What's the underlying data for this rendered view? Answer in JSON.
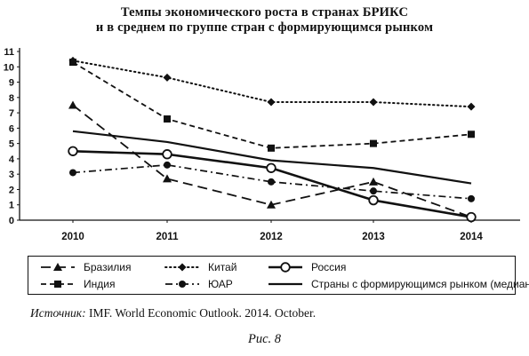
{
  "chart_data": {
    "type": "line",
    "title_line1": "Темпы экономического роста в странах БРИКС",
    "title_line2": "и в среднем по группе стран с формирующимся рынком",
    "xlabel": "",
    "ylabel": "",
    "x": [
      "2010",
      "2011",
      "2012",
      "2013",
      "2014"
    ],
    "ylim": [
      0,
      11
    ],
    "yticks": [
      "0",
      "1",
      "2",
      "3",
      "4",
      "5",
      "6",
      "7",
      "8",
      "9",
      "10",
      "11"
    ],
    "grid": false,
    "legend_placement": "bottom",
    "series": [
      {
        "name": "Бразилия",
        "key": "brazil",
        "values": [
          7.5,
          2.7,
          1.0,
          2.5,
          0.2
        ],
        "dash": "long-dash",
        "marker": "triangle"
      },
      {
        "name": "Китай",
        "key": "china",
        "values": [
          10.4,
          9.3,
          7.7,
          7.7,
          7.4
        ],
        "dash": "dotted",
        "marker": "diamond"
      },
      {
        "name": "Россия",
        "key": "russia",
        "values": [
          4.5,
          4.3,
          3.4,
          1.3,
          0.2
        ],
        "dash": "solid-bold",
        "marker": "open-circle"
      },
      {
        "name": "Индия",
        "key": "india",
        "values": [
          10.3,
          6.6,
          4.7,
          5.0,
          5.6
        ],
        "dash": "dashed",
        "marker": "square"
      },
      {
        "name": "ЮАР",
        "key": "sar",
        "values": [
          3.1,
          3.6,
          2.5,
          1.9,
          1.4
        ],
        "dash": "dash-dot",
        "marker": "circle"
      },
      {
        "name": "Страны с формирующимся рынком (медиана)",
        "key": "em",
        "values": [
          5.8,
          5.1,
          3.9,
          3.4,
          2.4
        ],
        "dash": "solid",
        "marker": "none"
      }
    ]
  },
  "source": {
    "label": "Источник:",
    "text": " IMF. World Economic Outlook. 2014. October."
  },
  "figure_caption": "Рис. 8"
}
